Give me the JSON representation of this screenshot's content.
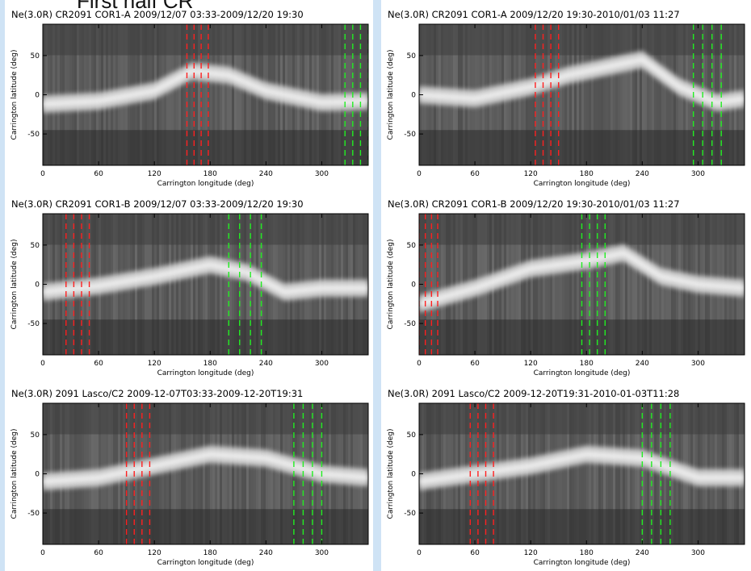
{
  "header": {
    "label": "First half CR"
  },
  "style": {
    "red": "#ff2020",
    "green": "#22ee22"
  },
  "chart_data": [
    {
      "type": "heatmap",
      "title": "Ne(3.0R) CR2091 COR1-A 2009/12/07 03:33-2009/12/20 19:30",
      "xlabel": "Carrington longitude (deg)",
      "ylabel": "Carrington latitude (deg)",
      "xlim": [
        0,
        350
      ],
      "ylim": [
        -90,
        90
      ],
      "xticks": [
        0,
        60,
        120,
        180,
        240,
        300
      ],
      "yticks": [
        50,
        0,
        -50
      ],
      "red_marks": [
        155,
        178
      ],
      "green_marks": [
        325,
        350
      ],
      "streamer": {
        "x": [
          0,
          60,
          120,
          160,
          200,
          240,
          300,
          350
        ],
        "y": [
          -12,
          -8,
          5,
          30,
          25,
          5,
          -10,
          -8
        ]
      }
    },
    {
      "type": "heatmap",
      "title": "Ne(3.0R) CR2091 COR1-A 2009/12/20 19:30-2010/01/03 11:27",
      "xlabel": "Carrington longitude (deg)",
      "ylabel": "Carrington latitude (deg)",
      "xlim": [
        0,
        350
      ],
      "ylim": [
        -90,
        90
      ],
      "xticks": [
        0,
        60,
        120,
        180,
        240,
        300
      ],
      "yticks": [
        50,
        0,
        -50
      ],
      "red_marks": [
        125,
        150
      ],
      "green_marks": [
        295,
        325
      ],
      "streamer": {
        "x": [
          0,
          60,
          120,
          160,
          200,
          240,
          280,
          320,
          350
        ],
        "y": [
          0,
          -5,
          10,
          25,
          35,
          45,
          10,
          -10,
          -5
        ]
      }
    },
    {
      "type": "heatmap",
      "title": "Ne(3.0R) CR2091 COR1-B 2009/12/07 03:33-2009/12/20 19:30",
      "xlabel": "Carrington longitude (deg)",
      "ylabel": "Carrington latitude (deg)",
      "xlim": [
        0,
        350
      ],
      "ylim": [
        -90,
        90
      ],
      "xticks": [
        0,
        60,
        120,
        180,
        240,
        300
      ],
      "yticks": [
        50,
        0,
        -50
      ],
      "red_marks": [
        25,
        50
      ],
      "green_marks": [
        200,
        235
      ],
      "streamer": {
        "x": [
          0,
          60,
          120,
          180,
          220,
          260,
          300,
          350
        ],
        "y": [
          -10,
          -2,
          10,
          25,
          15,
          -10,
          -5,
          -5
        ]
      }
    },
    {
      "type": "heatmap",
      "title": "Ne(3.0R) CR2091 COR1-B 2009/12/20 19:30-2010/01/03 11:27",
      "xlabel": "Carrington longitude (deg)",
      "ylabel": "Carrington latitude (deg)",
      "xlim": [
        0,
        350
      ],
      "ylim": [
        -90,
        90
      ],
      "xticks": [
        0,
        60,
        120,
        180,
        240,
        300
      ],
      "yticks": [
        50,
        0,
        -50
      ],
      "red_marks": [
        0,
        20
      ],
      "green_marks": [
        175,
        200
      ],
      "streamer": {
        "x": [
          0,
          60,
          120,
          180,
          220,
          260,
          300,
          350
        ],
        "y": [
          -25,
          -5,
          20,
          30,
          40,
          10,
          0,
          -5
        ]
      }
    },
    {
      "type": "heatmap",
      "title": "Ne(3.0R) 2091 Lasco/C2 2009-12-07T03:33-2009-12-20T19:31",
      "xlabel": "Carrington longitude (deg)",
      "ylabel": "Carrington latitude (deg)",
      "xlim": [
        0,
        350
      ],
      "ylim": [
        -90,
        90
      ],
      "xticks": [
        0,
        60,
        120,
        180,
        240,
        300
      ],
      "yticks": [
        50,
        0,
        -50
      ],
      "red_marks": [
        90,
        115
      ],
      "green_marks": [
        270,
        300
      ],
      "streamer": {
        "x": [
          0,
          60,
          120,
          180,
          240,
          300,
          350
        ],
        "y": [
          -10,
          -5,
          10,
          25,
          20,
          0,
          -5
        ]
      }
    },
    {
      "type": "heatmap",
      "title": "Ne(3.0R) 2091 Lasco/C2 2009-12-20T19:31-2010-01-03T11:28",
      "xlabel": "Carrington longitude (deg)",
      "ylabel": "Carrington latitude (deg)",
      "xlim": [
        0,
        350
      ],
      "ylim": [
        -90,
        90
      ],
      "xticks": [
        0,
        60,
        120,
        180,
        240,
        300
      ],
      "yticks": [
        50,
        0,
        -50
      ],
      "red_marks": [
        55,
        80
      ],
      "green_marks": [
        240,
        270
      ],
      "streamer": {
        "x": [
          0,
          60,
          120,
          180,
          240,
          300,
          350
        ],
        "y": [
          -10,
          0,
          10,
          25,
          20,
          -5,
          -5
        ]
      }
    }
  ]
}
